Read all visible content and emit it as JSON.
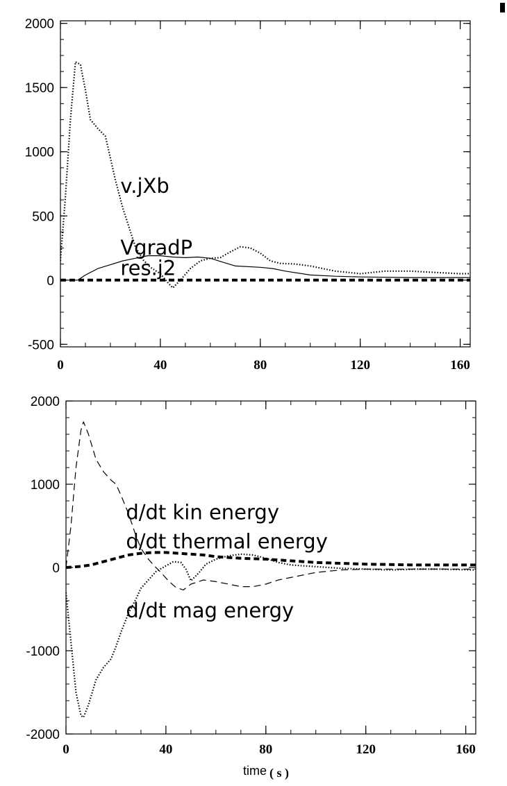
{
  "chart_data": [
    {
      "type": "line",
      "xlim": [
        0,
        164
      ],
      "ylim": [
        -520,
        2020
      ],
      "x_ticks": [
        "0",
        "40",
        "80",
        "120",
        "160"
      ],
      "x_tick_values": [
        0,
        40,
        80,
        120,
        160
      ],
      "y_ticks": [
        "2000",
        "1500",
        "1000",
        "500",
        "0",
        "-500"
      ],
      "y_tick_values": [
        2000,
        1500,
        1000,
        500,
        0,
        -500
      ],
      "grid": false,
      "annotations": [
        {
          "text": "v.jXb",
          "x": 24,
          "y": 680
        },
        {
          "text": "VgradP",
          "x": 24,
          "y": 200
        },
        {
          "text": "res.j2",
          "x": 24,
          "y": 40
        }
      ],
      "series": [
        {
          "style": "dotted",
          "x": [
            0,
            2,
            4,
            6,
            8,
            10,
            12,
            15,
            18,
            20,
            22,
            25,
            28,
            30,
            33,
            36,
            40,
            43,
            45,
            48,
            52,
            56,
            60,
            64,
            68,
            72,
            76,
            80,
            84,
            88,
            94,
            100,
            110,
            120,
            130,
            140,
            150,
            160,
            164
          ],
          "y": [
            150,
            650,
            1250,
            1700,
            1680,
            1480,
            1250,
            1180,
            1120,
            950,
            780,
            560,
            380,
            260,
            160,
            100,
            50,
            -20,
            -60,
            0,
            90,
            150,
            170,
            175,
            220,
            260,
            250,
            210,
            150,
            130,
            125,
            110,
            70,
            50,
            70,
            70,
            60,
            50,
            50
          ]
        },
        {
          "style": "solid",
          "x": [
            0,
            4,
            7,
            10,
            15,
            20,
            25,
            30,
            35,
            40,
            45,
            50,
            55,
            60,
            65,
            70,
            80,
            85,
            90,
            100,
            110,
            120,
            140,
            164
          ],
          "y": [
            0,
            0,
            0,
            40,
            90,
            120,
            150,
            170,
            190,
            190,
            180,
            175,
            180,
            170,
            140,
            110,
            100,
            90,
            70,
            40,
            30,
            25,
            20,
            20
          ]
        },
        {
          "style": "thick-dashed",
          "x": [
            0,
            164
          ],
          "y": [
            0,
            0
          ]
        }
      ]
    },
    {
      "type": "line",
      "xlim": [
        0,
        164
      ],
      "ylim": [
        -2000,
        2000
      ],
      "xlabel": "time",
      "xlabel_unit": "( s )",
      "x_ticks": [
        "0",
        "40",
        "80",
        "120",
        "160"
      ],
      "x_tick_values": [
        0,
        40,
        80,
        120,
        160
      ],
      "y_ticks": [
        "2000",
        "1000",
        "0",
        "-1000",
        "-2000"
      ],
      "y_tick_values": [
        2000,
        1000,
        0,
        -1000,
        -2000
      ],
      "grid": false,
      "annotations": [
        {
          "text": "d/dt kin energy",
          "x": 24,
          "y": 580
        },
        {
          "text": "d/dt thermal energy",
          "x": 24,
          "y": 230
        },
        {
          "text": "d/dt mag energy",
          "x": 24,
          "y": -600
        }
      ],
      "series": [
        {
          "style": "dashed",
          "x": [
            0,
            2,
            4,
            6,
            7,
            9,
            12,
            15,
            18,
            20,
            22,
            25,
            28,
            30,
            33,
            35,
            38,
            41,
            44,
            47,
            50,
            55,
            60,
            65,
            70,
            75,
            80,
            85,
            90,
            100,
            110,
            120,
            140,
            164
          ],
          "y": [
            0,
            500,
            1200,
            1650,
            1750,
            1600,
            1300,
            1150,
            1050,
            1000,
            870,
            650,
            380,
            230,
            100,
            30,
            -60,
            -160,
            -240,
            -270,
            -200,
            -150,
            -170,
            -200,
            -230,
            -230,
            -200,
            -150,
            -120,
            -60,
            -30,
            -20,
            -20,
            -20
          ]
        },
        {
          "style": "dotted",
          "x": [
            0,
            2,
            4,
            6,
            7,
            9,
            12,
            15,
            18,
            20,
            22,
            25,
            28,
            30,
            33,
            36,
            40,
            43,
            46,
            48,
            50,
            53,
            56,
            60,
            65,
            70,
            75,
            80,
            85,
            90,
            100,
            110,
            120,
            130,
            140,
            150,
            164
          ],
          "y": [
            -300,
            -900,
            -1500,
            -1780,
            -1800,
            -1650,
            -1350,
            -1200,
            -1100,
            -950,
            -780,
            -550,
            -380,
            -250,
            -150,
            -50,
            20,
            70,
            60,
            -20,
            -160,
            -70,
            40,
            100,
            140,
            160,
            150,
            110,
            60,
            30,
            10,
            -10,
            -20,
            -30,
            -20,
            -20,
            -30
          ]
        },
        {
          "style": "thick-dashed",
          "x": [
            0,
            5,
            10,
            15,
            20,
            25,
            30,
            35,
            40,
            45,
            50,
            55,
            60,
            65,
            70,
            80,
            90,
            100,
            120,
            140,
            164
          ],
          "y": [
            0,
            10,
            30,
            70,
            110,
            150,
            170,
            180,
            180,
            170,
            160,
            150,
            130,
            120,
            110,
            100,
            80,
            60,
            40,
            30,
            30
          ]
        }
      ]
    }
  ]
}
